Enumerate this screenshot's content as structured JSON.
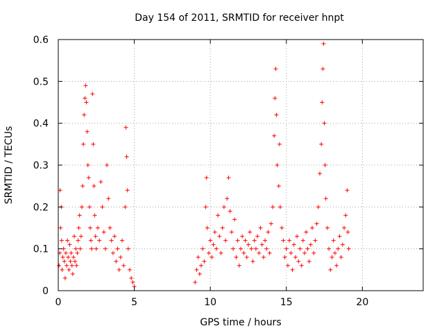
{
  "chart_data": {
    "type": "scatter",
    "title": "Day 154 of 2011, SRMTID for receiver hnpt",
    "xlabel": "GPS time / hours",
    "ylabel": "SRMTID / TECUs",
    "xlim": [
      0,
      24
    ],
    "ylim": [
      0,
      0.6
    ],
    "x_ticks": [
      0,
      5,
      10,
      15,
      20
    ],
    "x_tick_labels": [
      "0",
      "5",
      "10",
      "15",
      "20"
    ],
    "y_ticks": [
      0,
      0.1,
      0.2,
      0.3,
      0.4,
      0.5,
      0.6
    ],
    "y_tick_labels": [
      "0",
      "0.1",
      "0.2",
      "0.3",
      "0.4",
      "0.5",
      "0.6"
    ],
    "grid": true,
    "marker": "+",
    "color": "#ff0000",
    "series": [
      {
        "name": "SRMTID",
        "points": [
          [
            0.05,
            0.06
          ],
          [
            0.1,
            0.09
          ],
          [
            0.12,
            0.24
          ],
          [
            0.15,
            0.15
          ],
          [
            0.2,
            0.2
          ],
          [
            0.22,
            0.12
          ],
          [
            0.25,
            0.05
          ],
          [
            0.3,
            0.08
          ],
          [
            0.35,
            0.1
          ],
          [
            0.4,
            0.07
          ],
          [
            0.45,
            0.03
          ],
          [
            0.5,
            0.09
          ],
          [
            0.55,
            0.06
          ],
          [
            0.6,
            0.12
          ],
          [
            0.65,
            0.08
          ],
          [
            0.7,
            0.05
          ],
          [
            0.75,
            0.11
          ],
          [
            0.8,
            0.07
          ],
          [
            0.85,
            0.09
          ],
          [
            0.9,
            0.06
          ],
          [
            0.95,
            0.04
          ],
          [
            1.0,
            0.08
          ],
          [
            1.05,
            0.13
          ],
          [
            1.1,
            0.07
          ],
          [
            1.15,
            0.1
          ],
          [
            1.2,
            0.06
          ],
          [
            1.25,
            0.09
          ],
          [
            1.3,
            0.12
          ],
          [
            1.35,
            0.15
          ],
          [
            1.4,
            0.18
          ],
          [
            1.45,
            0.1
          ],
          [
            1.5,
            0.13
          ],
          [
            1.55,
            0.2
          ],
          [
            1.6,
            0.25
          ],
          [
            1.65,
            0.35
          ],
          [
            1.7,
            0.42
          ],
          [
            1.75,
            0.46
          ],
          [
            1.8,
            0.49
          ],
          [
            1.85,
            0.45
          ],
          [
            1.9,
            0.38
          ],
          [
            1.95,
            0.3
          ],
          [
            2.0,
            0.27
          ],
          [
            2.05,
            0.2
          ],
          [
            2.1,
            0.15
          ],
          [
            2.15,
            0.12
          ],
          [
            2.2,
            0.1
          ],
          [
            2.25,
            0.47
          ],
          [
            2.3,
            0.35
          ],
          [
            2.35,
            0.25
          ],
          [
            2.4,
            0.18
          ],
          [
            2.45,
            0.13
          ],
          [
            2.5,
            0.1
          ],
          [
            2.6,
            0.15
          ],
          [
            2.7,
            0.12
          ],
          [
            2.8,
            0.26
          ],
          [
            2.9,
            0.2
          ],
          [
            3.0,
            0.14
          ],
          [
            3.1,
            0.1
          ],
          [
            3.2,
            0.3
          ],
          [
            3.3,
            0.22
          ],
          [
            3.4,
            0.15
          ],
          [
            3.5,
            0.12
          ],
          [
            3.6,
            0.09
          ],
          [
            3.7,
            0.13
          ],
          [
            3.8,
            0.07
          ],
          [
            3.9,
            0.1
          ],
          [
            4.0,
            0.05
          ],
          [
            4.1,
            0.08
          ],
          [
            4.2,
            0.12
          ],
          [
            4.3,
            0.06
          ],
          [
            4.4,
            0.2
          ],
          [
            4.45,
            0.39
          ],
          [
            4.5,
            0.32
          ],
          [
            4.55,
            0.24
          ],
          [
            4.6,
            0.1
          ],
          [
            4.7,
            0.05
          ],
          [
            4.8,
            0.03
          ],
          [
            4.9,
            0.02
          ],
          [
            5.0,
            0.01
          ],
          [
            9.0,
            0.02
          ],
          [
            9.1,
            0.05
          ],
          [
            9.2,
            0.08
          ],
          [
            9.3,
            0.04
          ],
          [
            9.4,
            0.06
          ],
          [
            9.5,
            0.1
          ],
          [
            9.6,
            0.07
          ],
          [
            9.7,
            0.2
          ],
          [
            9.75,
            0.27
          ],
          [
            9.8,
            0.15
          ],
          [
            9.9,
            0.09
          ],
          [
            10.0,
            0.12
          ],
          [
            10.1,
            0.08
          ],
          [
            10.2,
            0.11
          ],
          [
            10.3,
            0.14
          ],
          [
            10.4,
            0.1
          ],
          [
            10.5,
            0.18
          ],
          [
            10.6,
            0.13
          ],
          [
            10.7,
            0.09
          ],
          [
            10.8,
            0.15
          ],
          [
            10.9,
            0.2
          ],
          [
            11.0,
            0.12
          ],
          [
            11.1,
            0.22
          ],
          [
            11.2,
            0.27
          ],
          [
            11.3,
            0.19
          ],
          [
            11.4,
            0.14
          ],
          [
            11.5,
            0.1
          ],
          [
            11.6,
            0.17
          ],
          [
            11.7,
            0.08
          ],
          [
            11.8,
            0.12
          ],
          [
            11.9,
            0.06
          ],
          [
            12.0,
            0.1
          ],
          [
            12.1,
            0.13
          ],
          [
            12.2,
            0.09
          ],
          [
            12.3,
            0.12
          ],
          [
            12.4,
            0.08
          ],
          [
            12.5,
            0.11
          ],
          [
            12.6,
            0.14
          ],
          [
            12.7,
            0.1
          ],
          [
            12.8,
            0.07
          ],
          [
            12.9,
            0.12
          ],
          [
            13.0,
            0.1
          ],
          [
            13.1,
            0.13
          ],
          [
            13.2,
            0.09
          ],
          [
            13.3,
            0.15
          ],
          [
            13.4,
            0.11
          ],
          [
            13.5,
            0.08
          ],
          [
            13.6,
            0.12
          ],
          [
            13.7,
            0.1
          ],
          [
            13.8,
            0.14
          ],
          [
            13.9,
            0.09
          ],
          [
            14.0,
            0.16
          ],
          [
            14.1,
            0.2
          ],
          [
            14.2,
            0.37
          ],
          [
            14.25,
            0.46
          ],
          [
            14.3,
            0.53
          ],
          [
            14.35,
            0.42
          ],
          [
            14.4,
            0.3
          ],
          [
            14.5,
            0.25
          ],
          [
            14.55,
            0.35
          ],
          [
            14.6,
            0.2
          ],
          [
            14.7,
            0.15
          ],
          [
            14.8,
            0.12
          ],
          [
            14.9,
            0.08
          ],
          [
            15.0,
            0.1
          ],
          [
            15.1,
            0.06
          ],
          [
            15.2,
            0.12
          ],
          [
            15.3,
            0.09
          ],
          [
            15.4,
            0.05
          ],
          [
            15.5,
            0.11
          ],
          [
            15.6,
            0.08
          ],
          [
            15.7,
            0.13
          ],
          [
            15.8,
            0.07
          ],
          [
            15.9,
            0.1
          ],
          [
            16.0,
            0.06
          ],
          [
            16.1,
            0.12
          ],
          [
            16.2,
            0.09
          ],
          [
            16.3,
            0.14
          ],
          [
            16.4,
            0.1
          ],
          [
            16.5,
            0.07
          ],
          [
            16.6,
            0.11
          ],
          [
            16.7,
            0.15
          ],
          [
            16.8,
            0.09
          ],
          [
            16.9,
            0.12
          ],
          [
            17.0,
            0.16
          ],
          [
            17.1,
            0.2
          ],
          [
            17.2,
            0.28
          ],
          [
            17.3,
            0.35
          ],
          [
            17.35,
            0.45
          ],
          [
            17.4,
            0.53
          ],
          [
            17.45,
            0.59
          ],
          [
            17.5,
            0.4
          ],
          [
            17.55,
            0.3
          ],
          [
            17.6,
            0.22
          ],
          [
            17.7,
            0.15
          ],
          [
            17.8,
            0.1
          ],
          [
            17.9,
            0.05
          ],
          [
            18.0,
            0.08
          ],
          [
            18.1,
            0.12
          ],
          [
            18.2,
            0.09
          ],
          [
            18.3,
            0.06
          ],
          [
            18.4,
            0.1
          ],
          [
            18.5,
            0.13
          ],
          [
            18.6,
            0.08
          ],
          [
            18.7,
            0.11
          ],
          [
            18.8,
            0.15
          ],
          [
            18.9,
            0.18
          ],
          [
            19.0,
            0.24
          ],
          [
            19.05,
            0.14
          ],
          [
            19.1,
            0.1
          ]
        ]
      }
    ]
  }
}
